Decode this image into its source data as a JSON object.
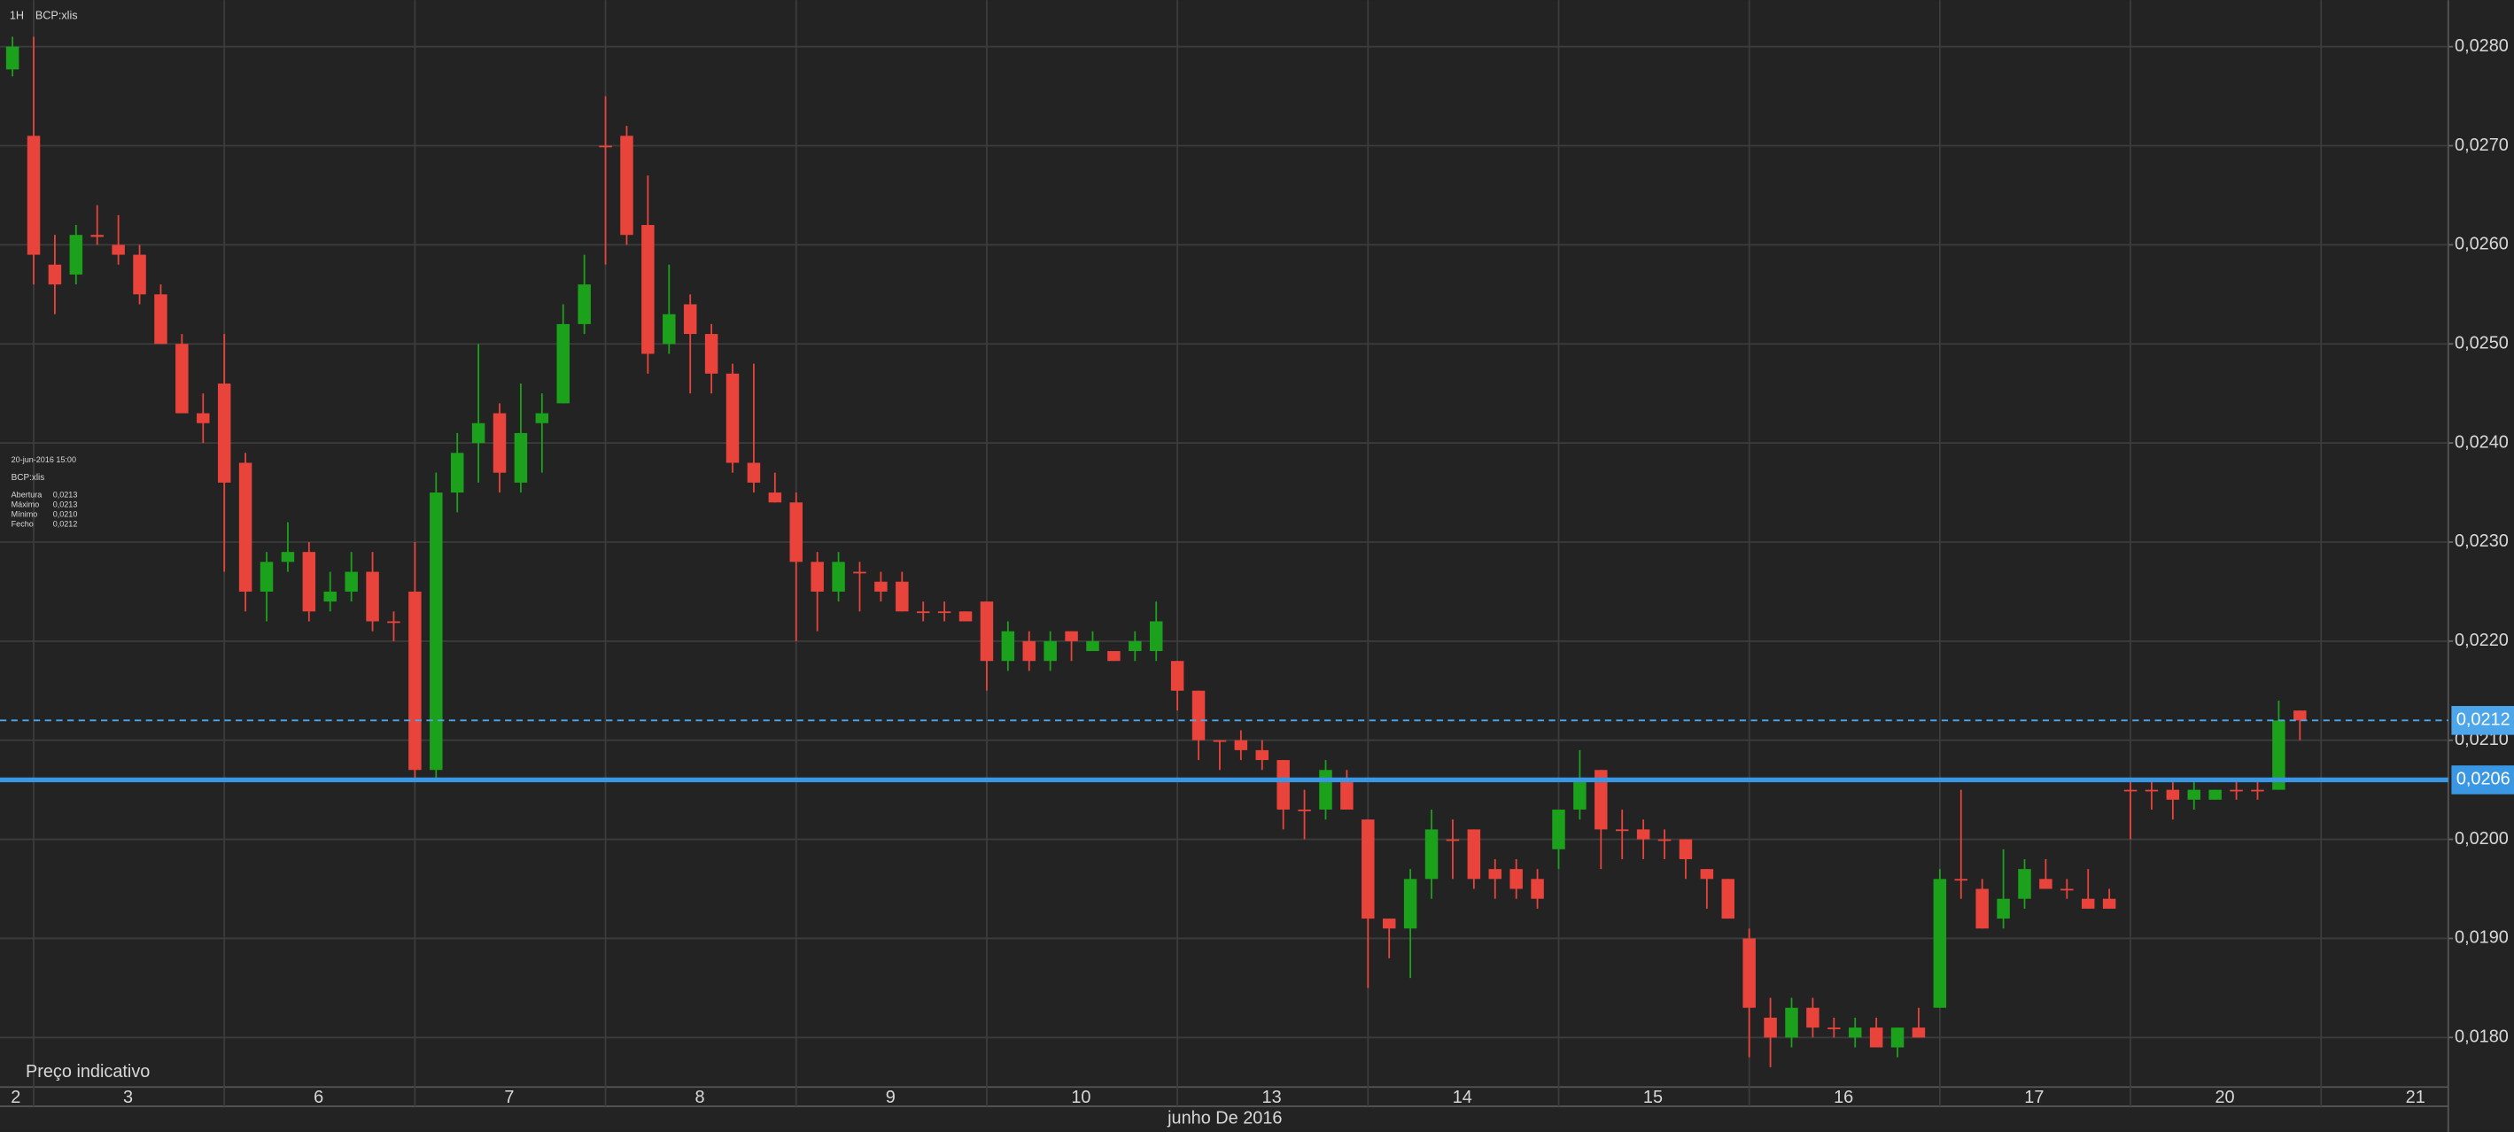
{
  "header": {
    "interval": "1H",
    "symbol": "BCP:xlis"
  },
  "info_box": {
    "time": "20-jun-2016 15:00",
    "symbol": "BCP:xlis",
    "rows": [
      {
        "label": "Abertura",
        "value": "0,0213"
      },
      {
        "label": "Máximo",
        "value": "0,0213"
      },
      {
        "label": "Mínimo",
        "value": "0,0210"
      },
      {
        "label": "Fecho",
        "value": "0,0212"
      }
    ]
  },
  "footer_note": "Preço indicativo",
  "chart_data": {
    "type": "candlestick",
    "xlabel": "junho De 2016",
    "categories": [
      "2",
      null,
      null,
      null,
      null,
      "3",
      null,
      null,
      null,
      null,
      null,
      null,
      null,
      null,
      "6",
      null,
      null,
      null,
      null,
      null,
      null,
      null,
      null,
      "7",
      null,
      null,
      null,
      null,
      null,
      null,
      null,
      null,
      "8",
      null,
      null,
      null,
      null,
      null,
      null,
      null,
      null,
      "9",
      null,
      null,
      null,
      null,
      null,
      null,
      null,
      null,
      "10",
      null,
      null,
      null,
      null,
      null,
      null,
      null,
      null,
      "13",
      null,
      null,
      null,
      null,
      null,
      null,
      null,
      null,
      "14",
      null,
      null,
      null,
      null,
      null,
      null,
      null,
      null,
      "15",
      null,
      null,
      null,
      null,
      null,
      null,
      null,
      null,
      "16",
      null,
      null,
      null,
      null,
      null,
      null,
      null,
      null,
      "17",
      null,
      null,
      null,
      null,
      null,
      null,
      null,
      null,
      "20",
      null,
      null,
      null,
      null,
      null,
      null,
      null,
      null,
      "21",
      null,
      null,
      null,
      null
    ],
    "open": [
      0.02777,
      0.0271,
      0.0258,
      0.0257,
      0.0261,
      0.026,
      0.0259,
      0.0255,
      0.025,
      0.0243,
      0.0246,
      0.0238,
      0.0225,
      0.0228,
      0.0229,
      0.0224,
      0.0225,
      0.0227,
      0.0222,
      0.0225,
      0.0207,
      0.0235,
      0.024,
      0.0243,
      0.0236,
      0.0242,
      0.0244,
      0.0252,
      0.027,
      0.0271,
      0.0262,
      0.025,
      0.0254,
      0.0251,
      0.0247,
      0.0238,
      0.0235,
      0.0234,
      0.0228,
      0.0225,
      0.0227,
      0.0226,
      0.0226,
      0.0223,
      0.0223,
      0.0223,
      0.0224,
      0.0218,
      0.022,
      0.0218,
      0.0221,
      0.0219,
      0.0219,
      0.0219,
      0.0219,
      0.0218,
      0.0215,
      0.021,
      0.021,
      0.0209,
      0.0208,
      0.0203,
      0.0203,
      0.0206,
      0.0202,
      0.0192,
      0.0191,
      0.0196,
      0.02,
      0.0201,
      0.0197,
      0.0197,
      0.0196,
      0.0199,
      0.0203,
      0.0207,
      0.0201,
      0.0201,
      0.02,
      0.02,
      0.0197,
      0.0196,
      0.019,
      0.0182,
      0.018,
      0.0183,
      0.0181,
      0.018,
      0.0181,
      0.0179,
      0.0181,
      0.0183,
      0.0196,
      0.0195,
      0.0192,
      0.0194,
      0.0196,
      0.0195,
      0.0194,
      0.0194,
      0.0205,
      0.0205,
      0.0205,
      0.0204,
      0.0204,
      0.0205,
      0.0205,
      0.0205,
      0.0213,
      null,
      null,
      null,
      null,
      null,
      null,
      null,
      null,
      null
    ],
    "high": [
      0.0281,
      0.0281,
      0.0261,
      0.0262,
      0.0264,
      0.0263,
      0.026,
      0.0256,
      0.0251,
      0.0245,
      0.0251,
      0.0239,
      0.0229,
      0.0232,
      0.023,
      0.0227,
      0.0229,
      0.0229,
      0.0223,
      0.023,
      0.0237,
      0.0241,
      0.025,
      0.0244,
      0.0246,
      0.0245,
      0.0254,
      0.0259,
      0.0275,
      0.0272,
      0.0267,
      0.0258,
      0.0255,
      0.0252,
      0.0248,
      0.0248,
      0.0237,
      0.0235,
      0.0229,
      0.0229,
      0.0228,
      0.0227,
      0.0227,
      0.0224,
      0.0224,
      0.0223,
      0.0224,
      0.0222,
      0.0221,
      0.0221,
      0.0221,
      0.0221,
      0.0219,
      0.0221,
      0.0224,
      0.0218,
      0.0215,
      0.021,
      0.0211,
      0.021,
      0.0208,
      0.0205,
      0.0208,
      0.0207,
      0.0202,
      0.0192,
      0.0197,
      0.0203,
      0.0202,
      0.0201,
      0.0198,
      0.0198,
      0.0197,
      0.0203,
      0.0209,
      0.0207,
      0.0203,
      0.0202,
      0.0201,
      0.02,
      0.0197,
      0.0196,
      0.0191,
      0.0184,
      0.0184,
      0.0184,
      0.0182,
      0.0182,
      0.0182,
      0.0181,
      0.0183,
      0.0197,
      0.0205,
      0.0196,
      0.0199,
      0.0198,
      0.0198,
      0.0196,
      0.0197,
      0.0195,
      0.0206,
      0.0206,
      0.0206,
      0.0206,
      0.0205,
      0.0206,
      0.0206,
      0.0214,
      0.0213,
      null,
      null,
      null,
      null,
      null,
      null,
      null,
      null,
      null
    ],
    "low": [
      0.0277,
      0.0256,
      0.0253,
      0.0256,
      0.026,
      0.0258,
      0.0254,
      0.025,
      0.0243,
      0.024,
      0.0227,
      0.0223,
      0.0222,
      0.0227,
      0.0222,
      0.0223,
      0.0224,
      0.0221,
      0.022,
      0.0206,
      0.0206,
      0.0233,
      0.0236,
      0.0235,
      0.0235,
      0.0237,
      0.0244,
      0.0251,
      0.0258,
      0.026,
      0.0247,
      0.0249,
      0.0245,
      0.0245,
      0.0237,
      0.0235,
      0.0234,
      0.022,
      0.0221,
      0.0224,
      0.0223,
      0.0224,
      0.0223,
      0.0222,
      0.0222,
      0.0222,
      0.0215,
      0.0217,
      0.0217,
      0.0217,
      0.0218,
      0.0219,
      0.0218,
      0.0218,
      0.0218,
      0.0213,
      0.0208,
      0.0207,
      0.0208,
      0.0207,
      0.0201,
      0.02,
      0.0202,
      0.0203,
      0.0185,
      0.0188,
      0.0186,
      0.0194,
      0.0196,
      0.0195,
      0.0194,
      0.0194,
      0.0193,
      0.0197,
      0.0202,
      0.0197,
      0.0198,
      0.0198,
      0.0198,
      0.0196,
      0.0193,
      0.0192,
      0.0178,
      0.0177,
      0.0179,
      0.018,
      0.018,
      0.0179,
      0.0179,
      0.0178,
      0.018,
      0.0183,
      0.0194,
      0.0191,
      0.0191,
      0.0193,
      0.0195,
      0.0194,
      0.0193,
      0.0193,
      0.02,
      0.0203,
      0.0202,
      0.0203,
      0.0204,
      0.0204,
      0.0204,
      0.0205,
      0.021,
      null,
      null,
      null,
      null,
      null,
      null,
      null,
      null,
      null
    ],
    "close": [
      0.028,
      0.0259,
      0.0256,
      0.0261,
      0.02608,
      0.0259,
      0.0255,
      0.025,
      0.0243,
      0.0242,
      0.0236,
      0.0225,
      0.0228,
      0.0229,
      0.0223,
      0.0225,
      0.0227,
      0.0222,
      0.0222,
      0.0207,
      0.0235,
      0.0239,
      0.0242,
      0.0237,
      0.0241,
      0.0243,
      0.0252,
      0.0256,
      0.027,
      0.0261,
      0.0249,
      0.0253,
      0.0251,
      0.0247,
      0.0238,
      0.0236,
      0.0234,
      0.0228,
      0.0225,
      0.0228,
      0.0227,
      0.0225,
      0.0223,
      0.0223,
      0.0223,
      0.0222,
      0.0218,
      0.0221,
      0.0218,
      0.022,
      0.022,
      0.022,
      0.0218,
      0.022,
      0.0222,
      0.0215,
      0.021,
      0.021,
      0.0209,
      0.0208,
      0.0203,
      0.0203,
      0.0207,
      0.0203,
      0.0192,
      0.0191,
      0.0196,
      0.0201,
      0.02,
      0.0196,
      0.0196,
      0.0195,
      0.0194,
      0.0203,
      0.0206,
      0.0201,
      0.0201,
      0.02,
      0.02,
      0.0198,
      0.0196,
      0.0192,
      0.0183,
      0.018,
      0.0183,
      0.0181,
      0.0181,
      0.0181,
      0.0179,
      0.0181,
      0.018,
      0.0196,
      0.0196,
      0.0191,
      0.0194,
      0.0197,
      0.0195,
      0.0195,
      0.0193,
      0.0193,
      0.0205,
      0.0205,
      0.0204,
      0.0205,
      0.0205,
      0.0205,
      0.0205,
      0.0212,
      0.0212,
      null,
      null,
      null,
      null,
      null,
      null,
      null,
      null,
      null
    ],
    "up_color": "#1ba11b",
    "down_color": "#e8443b",
    "grid": true,
    "ylim": [
      0.0175,
      0.02847
    ],
    "yticks": [
      {
        "value": 0.018,
        "label": "0,0180"
      },
      {
        "value": 0.019,
        "label": "0,0190"
      },
      {
        "value": 0.02,
        "label": "0,0200"
      },
      {
        "value": 0.021,
        "label": "0,0210"
      },
      {
        "value": 0.022,
        "label": "0,0220"
      },
      {
        "value": 0.023,
        "label": "0,0230"
      },
      {
        "value": 0.024,
        "label": "0,0240"
      },
      {
        "value": 0.025,
        "label": "0,0250"
      },
      {
        "value": 0.026,
        "label": "0,0260"
      },
      {
        "value": 0.027,
        "label": "0,0270"
      },
      {
        "value": 0.028,
        "label": "0,0280"
      }
    ],
    "price_lines": [
      {
        "value": 0.0212,
        "label": "0,0212",
        "style": "dashed",
        "color": "#4ea6ea"
      },
      {
        "value": 0.0206,
        "label": "0,0206",
        "style": "solid",
        "color": "#3a97e4"
      }
    ]
  }
}
